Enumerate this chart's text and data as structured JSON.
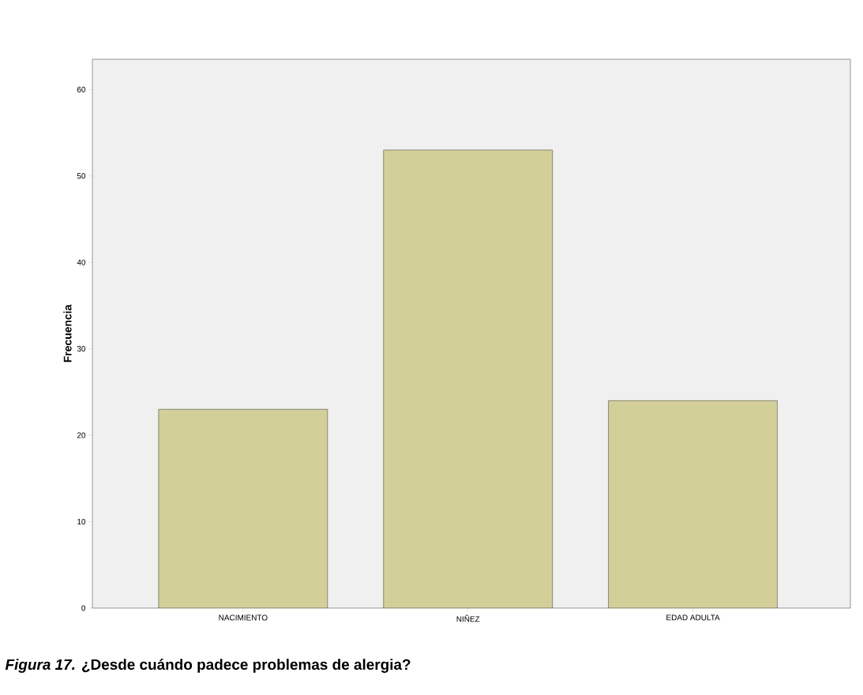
{
  "chart_data": {
    "type": "bar",
    "title": "*Figura 17.* ¿Desde cuándo padece problemas de alergia?",
    "ylabel": "Frecuencia",
    "categories": [
      "NACIMIENTO",
      "NIÑEZ",
      "EDAD ADULTA"
    ],
    "values": [
      23,
      53,
      24
    ],
    "color": "#d3cf98",
    "ylim": [
      0,
      63.5
    ],
    "yticks": [
      0,
      10,
      20,
      30,
      40,
      50,
      60
    ]
  }
}
